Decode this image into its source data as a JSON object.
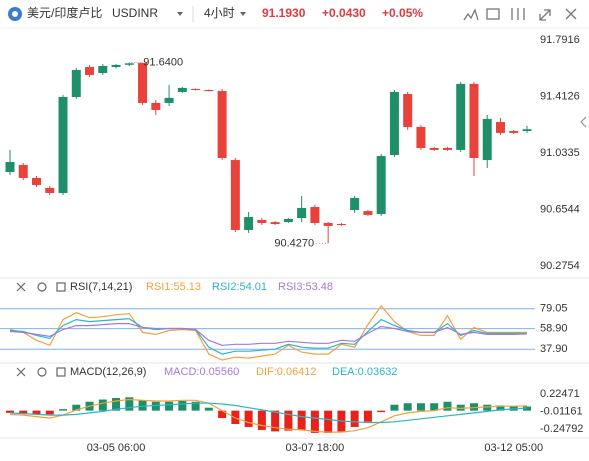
{
  "header": {
    "pair": "美元/印度卢比",
    "symbol": "USDINR",
    "interval": "4小时",
    "price": "91.1930",
    "change": "+0.0430",
    "change_pct": "+0.05%"
  },
  "chart_data": [
    {
      "type": "candlestick",
      "categories": [
        null,
        null,
        null,
        null,
        null,
        null,
        null,
        null,
        "03-05 06:00",
        null,
        null,
        null,
        null,
        null,
        null,
        null,
        null,
        null,
        null,
        null,
        null,
        null,
        null,
        "03-07 18:00",
        null,
        null,
        null,
        null,
        null,
        null,
        null,
        null,
        null,
        null,
        null,
        null,
        null,
        null,
        "03-12 05:00",
        null
      ],
      "open": [
        90.906,
        90.953,
        90.866,
        90.799,
        90.765,
        91.409,
        91.61,
        91.57,
        91.61,
        91.625,
        91.638,
        91.369,
        91.369,
        91.443,
        91.463,
        91.456,
        91.449,
        90.986,
        90.517,
        90.584,
        90.57,
        90.57,
        90.597,
        90.671,
        90.564,
        90.557,
        90.651,
        90.644,
        90.624,
        91.02,
        91.429,
        91.208,
        91.067,
        91.067,
        91.054,
        91.497,
        90.986,
        91.241,
        91.181,
        91.181
      ],
      "high": [
        91.054,
        90.966,
        90.879,
        90.812,
        91.423,
        91.604,
        91.624,
        91.631,
        91.63,
        91.64,
        91.638,
        91.389,
        91.49,
        91.476,
        91.466,
        91.46,
        91.463,
        91.0,
        90.638,
        90.597,
        90.577,
        90.597,
        90.745,
        90.685,
        90.57,
        90.564,
        90.745,
        90.651,
        91.027,
        91.456,
        91.443,
        91.221,
        91.074,
        91.074,
        91.51,
        91.51,
        91.288,
        91.268,
        91.188,
        91.215
      ],
      "low": [
        90.886,
        90.852,
        90.805,
        90.752,
        90.752,
        91.396,
        91.543,
        91.557,
        91.6,
        91.617,
        91.356,
        91.288,
        91.349,
        91.436,
        91.453,
        91.446,
        90.986,
        90.503,
        90.497,
        90.55,
        90.55,
        90.564,
        90.57,
        90.55,
        90.427,
        90.544,
        90.631,
        90.611,
        90.611,
        91.007,
        91.188,
        91.054,
        91.047,
        91.047,
        91.04,
        90.879,
        90.933,
        91.154,
        91.161,
        91.168
      ],
      "close": [
        90.973,
        90.866,
        90.819,
        90.765,
        91.409,
        91.59,
        91.557,
        91.617,
        91.624,
        91.635,
        91.369,
        91.322,
        91.403,
        91.47,
        91.456,
        91.449,
        91.0,
        90.517,
        90.604,
        90.564,
        90.557,
        90.591,
        90.665,
        90.564,
        90.544,
        90.55,
        90.732,
        90.618,
        91.013,
        91.443,
        91.208,
        91.067,
        91.054,
        91.054,
        91.497,
        91.0,
        91.262,
        91.168,
        91.168,
        91.193
      ],
      "up_color": "#1e8f69",
      "down_color": "#e8423a",
      "ylim": [
        90.215,
        91.892
      ],
      "yticks": [
        91.7916,
        91.4126,
        91.0335,
        90.6544,
        90.2754
      ],
      "annotations": [
        {
          "value": 91.64,
          "label": "91.6400"
        },
        {
          "value": 90.427,
          "label": "90.4270"
        }
      ]
    },
    {
      "type": "line",
      "title": "RSI(7,14,21)",
      "series": [
        {
          "name": "RSI1:55.13",
          "color": "#f5a03a",
          "values": [
            58,
            55,
            47,
            42,
            68,
            75,
            70,
            71,
            73,
            74,
            55,
            53,
            57,
            58,
            57,
            33,
            27,
            30,
            29,
            31,
            33,
            42,
            35,
            33,
            33,
            43,
            40,
            63,
            82,
            66,
            56,
            52,
            52,
            72,
            48,
            60,
            55,
            55,
            55,
            55.13
          ]
        },
        {
          "name": "RSI2:54.01",
          "color": "#2cb5c9",
          "values": [
            57,
            56,
            52,
            49,
            62,
            68,
            66,
            67,
            68,
            69,
            60,
            58,
            59,
            59,
            58,
            40,
            33,
            36,
            36,
            37,
            38,
            43,
            40,
            39,
            39,
            44,
            43,
            56,
            68,
            62,
            57,
            55,
            55,
            64,
            52,
            57,
            54,
            54,
            54,
            54.01
          ]
        },
        {
          "name": "RSI3:53.48",
          "color": "#a47ad8",
          "values": [
            56,
            55,
            53,
            51,
            58,
            62,
            62,
            63,
            64,
            64,
            60,
            59,
            59,
            59,
            58,
            47,
            42,
            43,
            43,
            44,
            44,
            46,
            45,
            44,
            44,
            47,
            46,
            54,
            61,
            59,
            56,
            55,
            55,
            60,
            53,
            55,
            53,
            53,
            53,
            53.48
          ]
        }
      ],
      "ylim": [
        25,
        92
      ],
      "yticks": [
        79.05,
        {
          "value": 58.9,
          "label": "58.90"
        },
        {
          "value": 37.9,
          "label": "37.90"
        }
      ]
    },
    {
      "type": "macd",
      "title": "MACD(12,26,9)",
      "series": [
        {
          "name": "MACD:0.05560",
          "kind": "bar",
          "color": "#a47ad8",
          "up_color": "#1e8f69",
          "down_color": "#e8221a",
          "values": [
            -0.03,
            -0.04,
            -0.05,
            -0.05,
            0.02,
            0.08,
            0.12,
            0.15,
            0.17,
            0.18,
            0.14,
            0.12,
            0.12,
            0.13,
            0.12,
            0.04,
            -0.1,
            -0.18,
            -0.22,
            -0.26,
            -0.28,
            -0.27,
            -0.26,
            -0.3,
            -0.3,
            -0.28,
            -0.22,
            -0.15,
            -0.02,
            0.08,
            0.1,
            0.1,
            0.1,
            0.12,
            0.08,
            0.1,
            0.08,
            0.07,
            0.06,
            0.0556
          ]
        },
        {
          "name": "DIF:0.06412",
          "kind": "line",
          "color": "#f5a03a",
          "values": [
            -0.05,
            -0.06,
            -0.08,
            -0.1,
            -0.06,
            0.01,
            0.06,
            0.1,
            0.13,
            0.15,
            0.14,
            0.13,
            0.13,
            0.14,
            0.14,
            0.1,
            0.0,
            -0.1,
            -0.16,
            -0.2,
            -0.23,
            -0.25,
            -0.26,
            -0.28,
            -0.29,
            -0.29,
            -0.27,
            -0.23,
            -0.15,
            -0.07,
            -0.03,
            -0.01,
            0.0,
            0.04,
            0.03,
            0.04,
            0.05,
            0.06,
            0.06,
            0.06412
          ]
        },
        {
          "name": "DEA:0.03632",
          "kind": "line",
          "color": "#2cb5c9",
          "values": [
            -0.03,
            -0.04,
            -0.05,
            -0.06,
            -0.06,
            -0.05,
            -0.03,
            -0.01,
            0.02,
            0.04,
            0.06,
            0.07,
            0.08,
            0.09,
            0.1,
            0.1,
            0.09,
            0.07,
            0.04,
            0.01,
            -0.02,
            -0.05,
            -0.08,
            -0.1,
            -0.12,
            -0.14,
            -0.15,
            -0.16,
            -0.16,
            -0.15,
            -0.13,
            -0.11,
            -0.09,
            -0.07,
            -0.05,
            -0.03,
            -0.01,
            0.01,
            0.025,
            0.03632
          ]
        }
      ],
      "ylim": [
        -0.396,
        0.346
      ],
      "yticks": [
        0.22471,
        -0.01161,
        -0.24792
      ]
    }
  ]
}
